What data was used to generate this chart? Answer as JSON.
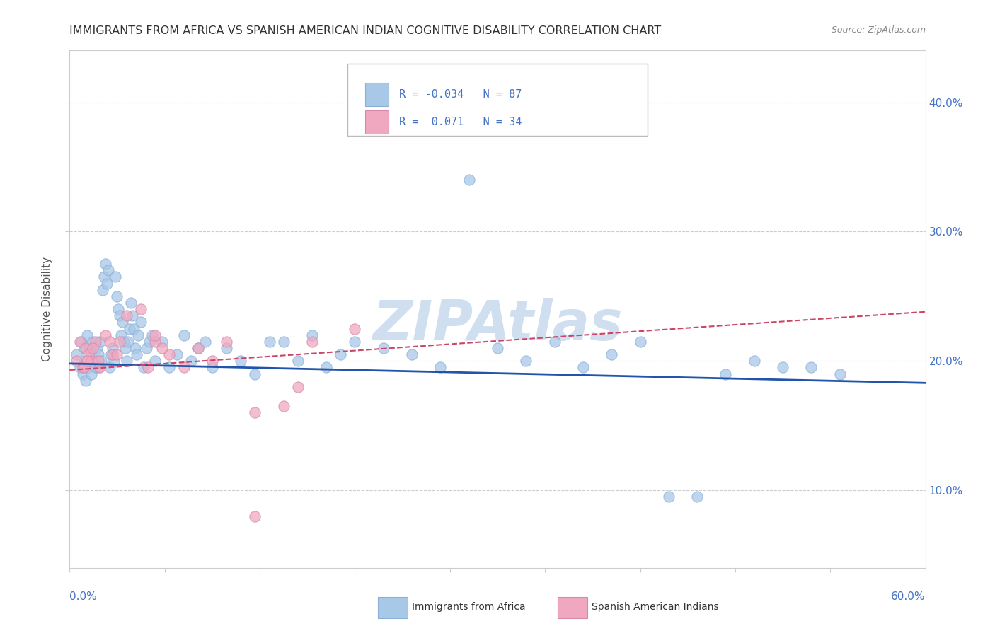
{
  "title": "IMMIGRANTS FROM AFRICA VS SPANISH AMERICAN INDIAN COGNITIVE DISABILITY CORRELATION CHART",
  "source": "Source: ZipAtlas.com",
  "ylabel": "Cognitive Disability",
  "legend_blue_label": "Immigrants from Africa",
  "legend_pink_label": "Spanish American Indians",
  "blue_color": "#a8c8e8",
  "pink_color": "#f0a8c0",
  "blue_line_color": "#2255aa",
  "pink_line_color": "#cc4466",
  "label_color": "#4472c4",
  "watermark_color": "#d0dff0",
  "xlim": [
    0.0,
    0.6
  ],
  "ylim": [
    0.04,
    0.44
  ],
  "blue_x": [
    0.005,
    0.007,
    0.008,
    0.009,
    0.01,
    0.01,
    0.011,
    0.012,
    0.013,
    0.014,
    0.015,
    0.015,
    0.016,
    0.017,
    0.018,
    0.019,
    0.02,
    0.02,
    0.021,
    0.022,
    0.023,
    0.024,
    0.025,
    0.026,
    0.027,
    0.028,
    0.029,
    0.03,
    0.031,
    0.032,
    0.033,
    0.034,
    0.035,
    0.036,
    0.037,
    0.038,
    0.039,
    0.04,
    0.041,
    0.042,
    0.043,
    0.044,
    0.045,
    0.046,
    0.047,
    0.048,
    0.05,
    0.052,
    0.054,
    0.056,
    0.058,
    0.06,
    0.065,
    0.07,
    0.075,
    0.08,
    0.085,
    0.09,
    0.095,
    0.1,
    0.11,
    0.12,
    0.13,
    0.14,
    0.15,
    0.16,
    0.17,
    0.18,
    0.19,
    0.2,
    0.22,
    0.24,
    0.26,
    0.28,
    0.3,
    0.32,
    0.34,
    0.36,
    0.38,
    0.4,
    0.42,
    0.44,
    0.46,
    0.48,
    0.5,
    0.52,
    0.54
  ],
  "blue_y": [
    0.205,
    0.195,
    0.215,
    0.19,
    0.2,
    0.21,
    0.185,
    0.22,
    0.195,
    0.21,
    0.19,
    0.205,
    0.215,
    0.2,
    0.195,
    0.21,
    0.205,
    0.195,
    0.215,
    0.2,
    0.255,
    0.265,
    0.275,
    0.26,
    0.27,
    0.195,
    0.205,
    0.21,
    0.2,
    0.265,
    0.25,
    0.24,
    0.235,
    0.22,
    0.23,
    0.215,
    0.21,
    0.2,
    0.215,
    0.225,
    0.245,
    0.235,
    0.225,
    0.21,
    0.205,
    0.22,
    0.23,
    0.195,
    0.21,
    0.215,
    0.22,
    0.2,
    0.215,
    0.195,
    0.205,
    0.22,
    0.2,
    0.21,
    0.215,
    0.195,
    0.21,
    0.2,
    0.19,
    0.215,
    0.215,
    0.2,
    0.22,
    0.195,
    0.205,
    0.215,
    0.21,
    0.205,
    0.195,
    0.34,
    0.21,
    0.2,
    0.215,
    0.195,
    0.205,
    0.215,
    0.095,
    0.095,
    0.19,
    0.2,
    0.195,
    0.195,
    0.19
  ],
  "pink_x": [
    0.005,
    0.007,
    0.009,
    0.011,
    0.013,
    0.015,
    0.018,
    0.021,
    0.025,
    0.03,
    0.035,
    0.04,
    0.05,
    0.055,
    0.06,
    0.07,
    0.08,
    0.09,
    0.1,
    0.11,
    0.13,
    0.15,
    0.17,
    0.2,
    0.01,
    0.012,
    0.016,
    0.02,
    0.028,
    0.033,
    0.06,
    0.065,
    0.13,
    0.16
  ],
  "pink_y": [
    0.2,
    0.215,
    0.195,
    0.21,
    0.205,
    0.2,
    0.215,
    0.195,
    0.22,
    0.205,
    0.215,
    0.235,
    0.24,
    0.195,
    0.215,
    0.205,
    0.195,
    0.21,
    0.2,
    0.215,
    0.08,
    0.165,
    0.215,
    0.225,
    0.195,
    0.2,
    0.21,
    0.2,
    0.215,
    0.205,
    0.22,
    0.21,
    0.16,
    0.18
  ],
  "blue_trend_x": [
    0.0,
    0.6
  ],
  "blue_trend_y": [
    0.198,
    0.183
  ],
  "pink_trend_x": [
    0.0,
    0.6
  ],
  "pink_trend_y": [
    0.193,
    0.238
  ]
}
